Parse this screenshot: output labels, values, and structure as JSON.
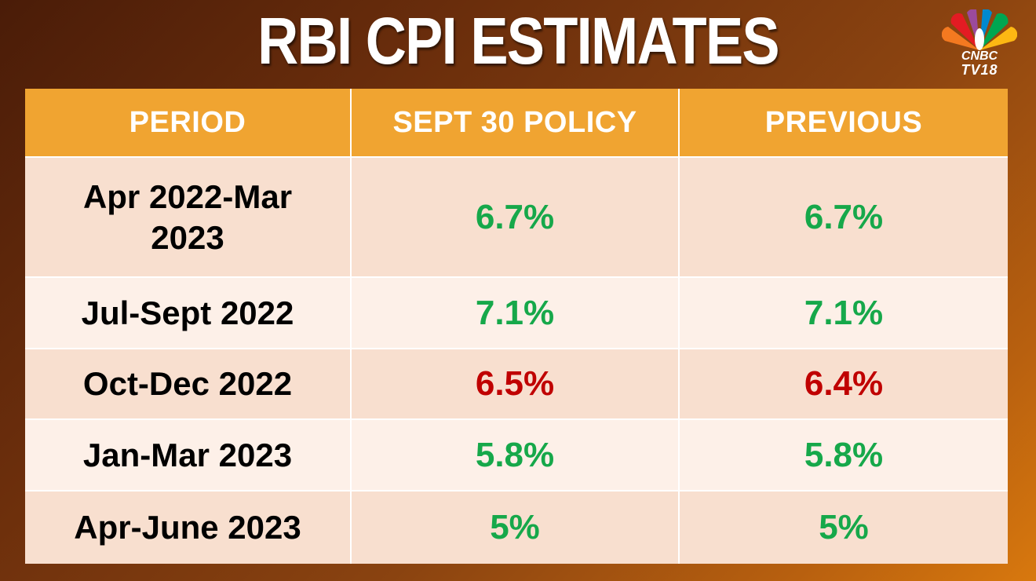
{
  "title": "RBI CPI ESTIMATES",
  "logo": {
    "brand": "CNBC",
    "channel": "TV18"
  },
  "colors": {
    "header_bg": "#f0a431",
    "row_shaded": "#f8dfcf",
    "row_light": "#fdf0e8",
    "green_value": "#16a84a",
    "red_value": "#c00000"
  },
  "table": {
    "headers": [
      "PERIOD",
      "SEPT 30 POLICY",
      "PREVIOUS"
    ],
    "rows": [
      {
        "period": "Apr 2022-Mar 2023",
        "sept30": "6.7%",
        "previous": "6.7%",
        "status": "up"
      },
      {
        "period": "Jul-Sept 2022",
        "sept30": "7.1%",
        "previous": "7.1%",
        "status": "up"
      },
      {
        "period": "Oct-Dec 2022",
        "sept30": "6.5%",
        "previous": "6.4%",
        "status": "down"
      },
      {
        "period": "Jan-Mar 2023",
        "sept30": "5.8%",
        "previous": "5.8%",
        "status": "up"
      },
      {
        "period": "Apr-June 2023",
        "sept30": "5%",
        "previous": "5%",
        "status": "up"
      }
    ]
  }
}
